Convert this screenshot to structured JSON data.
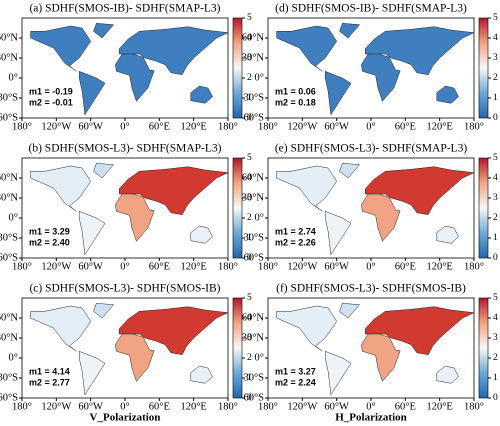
{
  "panels": [
    {
      "title": "(a) SDHF(SMOS-IB)- SDHF(SMAP-L3)",
      "annotations": [
        "m1 = -0.19",
        "m2 = -0.01"
      ]
    },
    {
      "title": "(b) SDHF(SMOS-L3)- SDHF(SMAP-L3)",
      "annotations": [
        "m1 = 3.29",
        "m2 = 2.40"
      ]
    },
    {
      "title": "(c) SDHF(SMOS-L3)- SDHF(SMOS-IB)",
      "annotations": [
        "m1 = 4.14",
        "m2 = 2.77"
      ]
    },
    {
      "title": "(d) SDHF(SMOS-IB)- SDHF(SMAP-L3)",
      "annotations": [
        "m1 = 0.06",
        "m2 = 0.18"
      ]
    },
    {
      "title": "(e) SDHF(SMOS-L3)- SDHF(SMAP-L3)",
      "annotations": [
        "m1 = 2.74",
        "m2 = 2.26"
      ]
    },
    {
      "title": "(f) SDHF(SMOS-L3)- SDHF(SMOS-IB)",
      "annotations": [
        "m1 = 3.27",
        "m2 = 2.24"
      ]
    }
  ],
  "xlim": [
    -180,
    180
  ],
  "ylim": [
    -60,
    90
  ],
  "lon_ticks": [
    {
      "value": -180,
      "label": "180°"
    },
    {
      "value": -120,
      "label": "120°W"
    },
    {
      "value": -60,
      "label": "60°W"
    },
    {
      "value": 0,
      "label": "0°"
    },
    {
      "value": 60,
      "label": "60°E"
    },
    {
      "value": 120,
      "label": "120°E"
    },
    {
      "value": 180,
      "label": "180°"
    }
  ],
  "lat_ticks": [
    {
      "value": 60,
      "label": "60°N"
    },
    {
      "value": 30,
      "label": "30°N"
    },
    {
      "value": 0,
      "label": "0°"
    },
    {
      "value": -30,
      "label": "30°S"
    },
    {
      "value": -60,
      "label": "60°S"
    }
  ],
  "colorbar": {
    "lim": [
      0,
      5
    ],
    "ticks": [
      0,
      1,
      2,
      3,
      4,
      5
    ]
  },
  "column_labels": [
    "V_Polarization",
    "H_Polarization"
  ]
}
